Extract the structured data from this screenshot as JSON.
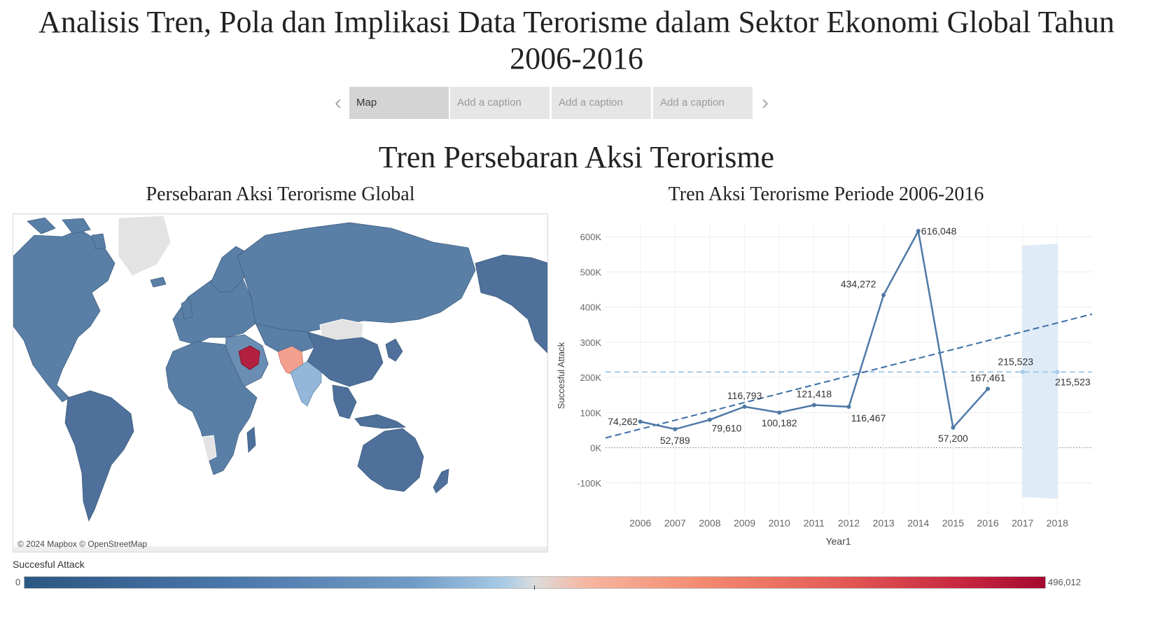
{
  "header": {
    "title": "Analisis Tren, Pola dan Implikasi Data Terorisme dalam Sektor Ekonomi Global Tahun 2006-2016"
  },
  "story_nav": {
    "tabs": [
      "Map",
      "Add a caption",
      "Add a caption",
      "Add a caption"
    ],
    "active_index": 0
  },
  "dashboard": {
    "title": "Tren Persebaran Aksi Terorisme",
    "map_title": "Persebaran Aksi Terorisme Global",
    "chart_title": "Tren Aksi Terorisme Periode 2006-2016",
    "map_credit": "© 2024 Mapbox © OpenStreetMap"
  },
  "legend": {
    "title": "Succesful Attack",
    "min_label": "0",
    "max_label": "496,012"
  },
  "colors": {
    "line": "#4e79a7",
    "trend": "#3b6ea5",
    "forecast": "#a6cbe9",
    "forecast_band": "#dce9f6",
    "map_high": "#b3203f",
    "map_mid": "#f3a08f",
    "map_base": "#5a7fa6",
    "map_no_data": "#e3e3e3"
  },
  "chart_data": {
    "type": "line",
    "x": [
      2006,
      2007,
      2008,
      2009,
      2010,
      2011,
      2012,
      2013,
      2014,
      2015,
      2016
    ],
    "series": [
      {
        "values": [
          74262,
          52789,
          79610,
          116793,
          100182,
          121418,
          116467,
          434272,
          616048,
          57200,
          167461
        ],
        "labels": [
          "74,262",
          "52,789",
          "79,610",
          "116,793",
          "100,182",
          "121,418",
          "116,467",
          "434,272",
          "616,048",
          "57,200",
          "167,461"
        ]
      }
    ],
    "forecast": {
      "x": [
        2017,
        2018
      ],
      "values": [
        215523,
        215523
      ],
      "labels": [
        "215,523",
        "215,523"
      ],
      "band_2017": [
        -140000,
        575000
      ],
      "band_2018": [
        -145000,
        580000
      ]
    },
    "reference_value": 215523,
    "trend_line": {
      "x": [
        2005,
        2019
      ],
      "y": [
        28000,
        380000
      ]
    },
    "xlabel": "Year1",
    "ylabel": "Succesful Attack",
    "x_tick_labels": [
      "2006",
      "2007",
      "2008",
      "2009",
      "2010",
      "2011",
      "2012",
      "2013",
      "2014",
      "2015",
      "2016",
      "2017",
      "2018"
    ],
    "y_tick_labels": [
      "-100K",
      "0K",
      "100K",
      "200K",
      "300K",
      "400K",
      "500K",
      "600K"
    ],
    "xlim": [
      2005,
      2019
    ],
    "ylim": [
      -190000,
      640000
    ],
    "grid": true
  }
}
